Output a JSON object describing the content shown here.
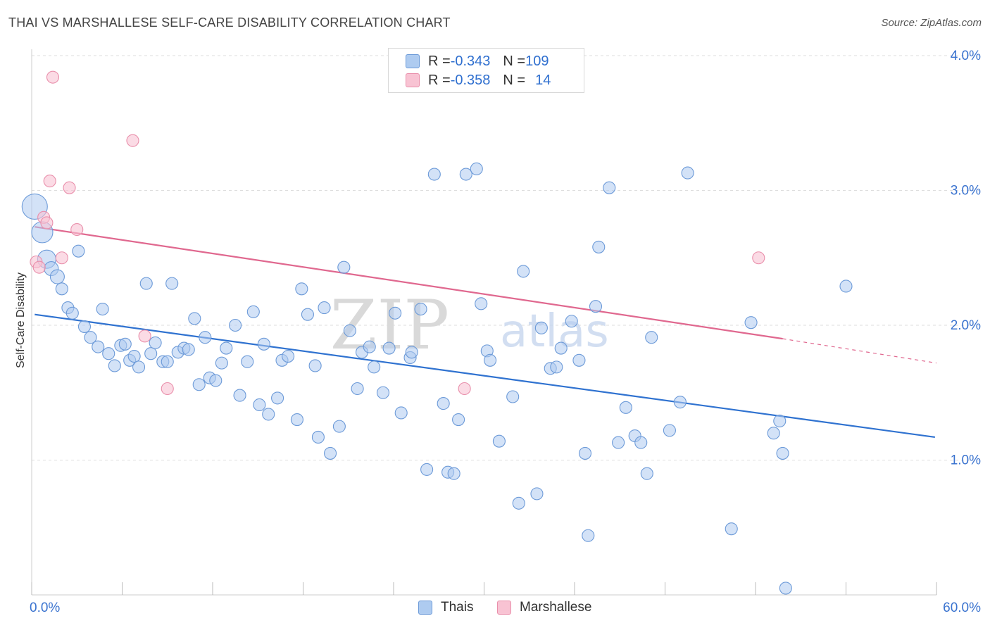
{
  "title": "THAI VS MARSHALLESE SELF-CARE DISABILITY CORRELATION CHART",
  "source": "Source: ZipAtlas.com",
  "watermark": {
    "zip": "ZIP",
    "atlas": "atlas"
  },
  "colors": {
    "thais_fill": "#aecbf0",
    "thais_stroke": "#6c9ad8",
    "thais_line": "#2f72d0",
    "marsh_fill": "#f8c3d3",
    "marsh_stroke": "#e98fab",
    "marsh_line": "#e0688f",
    "axis_label": "#3a73cf",
    "grid": "#dddddd"
  },
  "legend_top": [
    {
      "r_label": "R = ",
      "r_value": "-0.343",
      "n_label": "N = ",
      "n_value": "109"
    },
    {
      "r_label": "R = ",
      "r_value": "-0.358",
      "n_label": "N = ",
      "n_value": "14"
    }
  ],
  "legend_bottom": {
    "thais": "Thais",
    "marshallese": "Marshallese"
  },
  "chart_data": {
    "type": "scatter",
    "title": "THAI VS MARSHALLESE SELF-CARE DISABILITY CORRELATION CHART",
    "xlabel": "",
    "ylabel": "Self-Care Disability",
    "xlim": [
      0,
      60
    ],
    "ylim": [
      0,
      4.15
    ],
    "x_ticks": [
      {
        "value": 0,
        "label": "0.0%"
      },
      {
        "value": 60,
        "label": "60.0%"
      }
    ],
    "y_ticks": [
      {
        "value": 1,
        "label": "1.0%"
      },
      {
        "value": 2,
        "label": "2.0%"
      },
      {
        "value": 3,
        "label": "3.0%"
      },
      {
        "value": 4,
        "label": "4.0%"
      }
    ],
    "grid": "horizontal dashed",
    "legend_position": "top-center",
    "series": [
      {
        "name": "Thais",
        "r": -0.343,
        "n": 109,
        "trend": {
          "x0": 0.2,
          "y0": 2.08,
          "x1": 59.9,
          "y1": 1.17
        },
        "points": [
          [
            0.2,
            2.88
          ],
          [
            0.7,
            2.69
          ],
          [
            1.0,
            2.49
          ],
          [
            1.3,
            2.42
          ],
          [
            1.7,
            2.36
          ],
          [
            2.0,
            2.27
          ],
          [
            2.4,
            2.13
          ],
          [
            2.7,
            2.09
          ],
          [
            3.1,
            2.55
          ],
          [
            3.5,
            1.99
          ],
          [
            3.9,
            1.91
          ],
          [
            4.4,
            1.84
          ],
          [
            4.7,
            2.12
          ],
          [
            5.1,
            1.79
          ],
          [
            5.5,
            1.7
          ],
          [
            5.9,
            1.85
          ],
          [
            6.2,
            1.86
          ],
          [
            6.5,
            1.74
          ],
          [
            6.8,
            1.77
          ],
          [
            7.1,
            1.69
          ],
          [
            7.6,
            2.31
          ],
          [
            7.9,
            1.79
          ],
          [
            8.2,
            1.87
          ],
          [
            8.7,
            1.73
          ],
          [
            9.0,
            1.73
          ],
          [
            9.3,
            2.31
          ],
          [
            9.7,
            1.8
          ],
          [
            10.1,
            1.83
          ],
          [
            10.4,
            1.82
          ],
          [
            10.8,
            2.05
          ],
          [
            11.1,
            1.56
          ],
          [
            11.5,
            1.91
          ],
          [
            11.8,
            1.61
          ],
          [
            12.2,
            1.59
          ],
          [
            12.6,
            1.72
          ],
          [
            12.9,
            1.83
          ],
          [
            13.5,
            2.0
          ],
          [
            13.8,
            1.48
          ],
          [
            14.3,
            1.73
          ],
          [
            14.7,
            2.1
          ],
          [
            15.1,
            1.41
          ],
          [
            15.4,
            1.86
          ],
          [
            15.7,
            1.34
          ],
          [
            16.3,
            1.46
          ],
          [
            16.6,
            1.74
          ],
          [
            17.0,
            1.77
          ],
          [
            17.6,
            1.3
          ],
          [
            17.9,
            2.27
          ],
          [
            18.3,
            2.08
          ],
          [
            18.8,
            1.7
          ],
          [
            19.0,
            1.17
          ],
          [
            19.4,
            2.13
          ],
          [
            19.8,
            1.05
          ],
          [
            20.4,
            1.25
          ],
          [
            20.7,
            2.43
          ],
          [
            21.1,
            1.96
          ],
          [
            21.6,
            1.53
          ],
          [
            21.9,
            1.8
          ],
          [
            22.4,
            1.84
          ],
          [
            22.7,
            1.69
          ],
          [
            23.3,
            1.5
          ],
          [
            23.7,
            1.83
          ],
          [
            24.1,
            2.09
          ],
          [
            24.5,
            1.35
          ],
          [
            25.1,
            1.76
          ],
          [
            25.2,
            1.8
          ],
          [
            25.8,
            2.12
          ],
          [
            26.2,
            0.93
          ],
          [
            26.7,
            3.12
          ],
          [
            27.3,
            1.42
          ],
          [
            27.6,
            0.91
          ],
          [
            28.0,
            0.9
          ],
          [
            28.3,
            1.3
          ],
          [
            28.8,
            3.12
          ],
          [
            29.5,
            3.16
          ],
          [
            29.8,
            2.16
          ],
          [
            30.2,
            1.81
          ],
          [
            30.4,
            1.74
          ],
          [
            31.0,
            1.14
          ],
          [
            31.9,
            1.47
          ],
          [
            32.3,
            0.68
          ],
          [
            32.6,
            2.4
          ],
          [
            33.5,
            0.75
          ],
          [
            33.8,
            1.98
          ],
          [
            34.4,
            1.68
          ],
          [
            34.8,
            1.69
          ],
          [
            35.1,
            1.83
          ],
          [
            35.8,
            2.03
          ],
          [
            36.3,
            1.74
          ],
          [
            36.7,
            1.05
          ],
          [
            36.9,
            0.44
          ],
          [
            37.4,
            2.14
          ],
          [
            37.6,
            2.58
          ],
          [
            38.3,
            3.02
          ],
          [
            38.9,
            1.13
          ],
          [
            39.4,
            1.39
          ],
          [
            40.0,
            1.18
          ],
          [
            40.4,
            1.13
          ],
          [
            40.8,
            0.9
          ],
          [
            41.1,
            1.91
          ],
          [
            42.3,
            1.22
          ],
          [
            43.0,
            1.43
          ],
          [
            43.5,
            3.13
          ],
          [
            46.4,
            0.49
          ],
          [
            47.7,
            2.02
          ],
          [
            49.2,
            1.2
          ],
          [
            49.6,
            1.29
          ],
          [
            49.8,
            1.05
          ],
          [
            50.0,
            0.05
          ],
          [
            54.0,
            2.29
          ]
        ]
      },
      {
        "name": "Marshallese",
        "r": -0.358,
        "n": 14,
        "trend": {
          "x0": 0.2,
          "y0": 2.73,
          "x1": 49.8,
          "y1": 1.9
        },
        "trend_dashed_to": {
          "x": 60.0,
          "y": 1.72
        },
        "points": [
          [
            0.3,
            2.47
          ],
          [
            0.5,
            2.43
          ],
          [
            0.8,
            2.8
          ],
          [
            1.0,
            2.76
          ],
          [
            1.2,
            3.07
          ],
          [
            1.4,
            3.84
          ],
          [
            2.0,
            2.5
          ],
          [
            2.5,
            3.02
          ],
          [
            3.0,
            2.71
          ],
          [
            6.7,
            3.37
          ],
          [
            7.5,
            1.92
          ],
          [
            9.0,
            1.53
          ],
          [
            28.7,
            1.53
          ],
          [
            48.2,
            2.5
          ]
        ]
      }
    ]
  }
}
